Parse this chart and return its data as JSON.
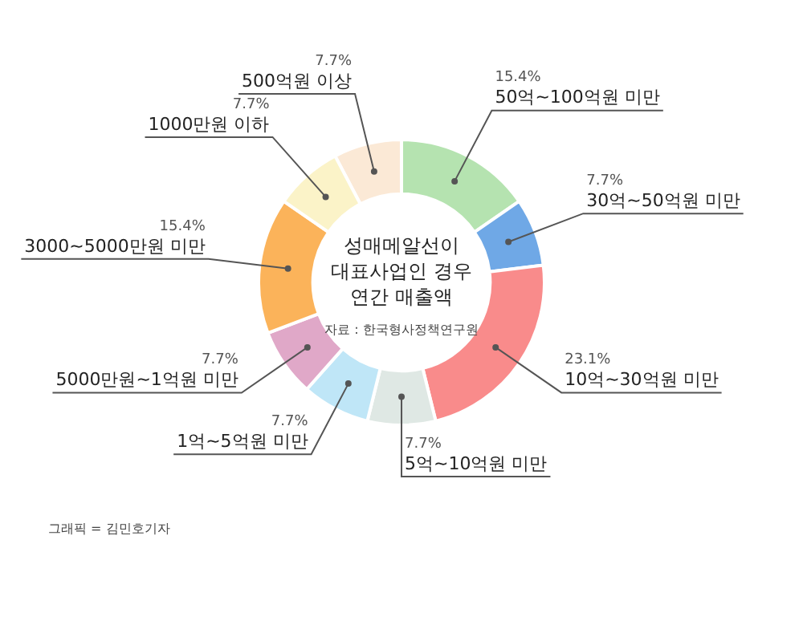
{
  "chart_data": {
    "type": "donut",
    "title": "성매메알선이\n대표사업인 경우\n연간 매출액",
    "categories": [
      "500억원 이상",
      "50억~100억원 미만",
      "30억~50억원 미만",
      "10억~30억원 미만",
      "5억~10억원 미만",
      "1억~5억원 미만",
      "5000만원~1억원 미만",
      "3000~5000만원 미만",
      "1000만원 이하"
    ],
    "values": [
      7.7,
      15.4,
      7.7,
      23.1,
      7.7,
      7.7,
      7.7,
      15.4,
      7.7
    ],
    "value_labels": [
      "7.7%",
      "15.4%",
      "7.7%",
      "23.1%",
      "7.7%",
      "7.7%",
      "7.7%",
      "15.4%",
      "7.7%"
    ],
    "colors": [
      "#fbe9d6",
      "#b5e3b0",
      "#6fa8e6",
      "#f98b8b",
      "#dfe8e4",
      "#bfe6f7",
      "#e0a8c8",
      "#fbb35a",
      "#fbf3c8"
    ],
    "annotations": [
      "자료 : 한국형사정책연구원",
      "그래픽 = 김민호기자"
    ],
    "legend": false
  }
}
